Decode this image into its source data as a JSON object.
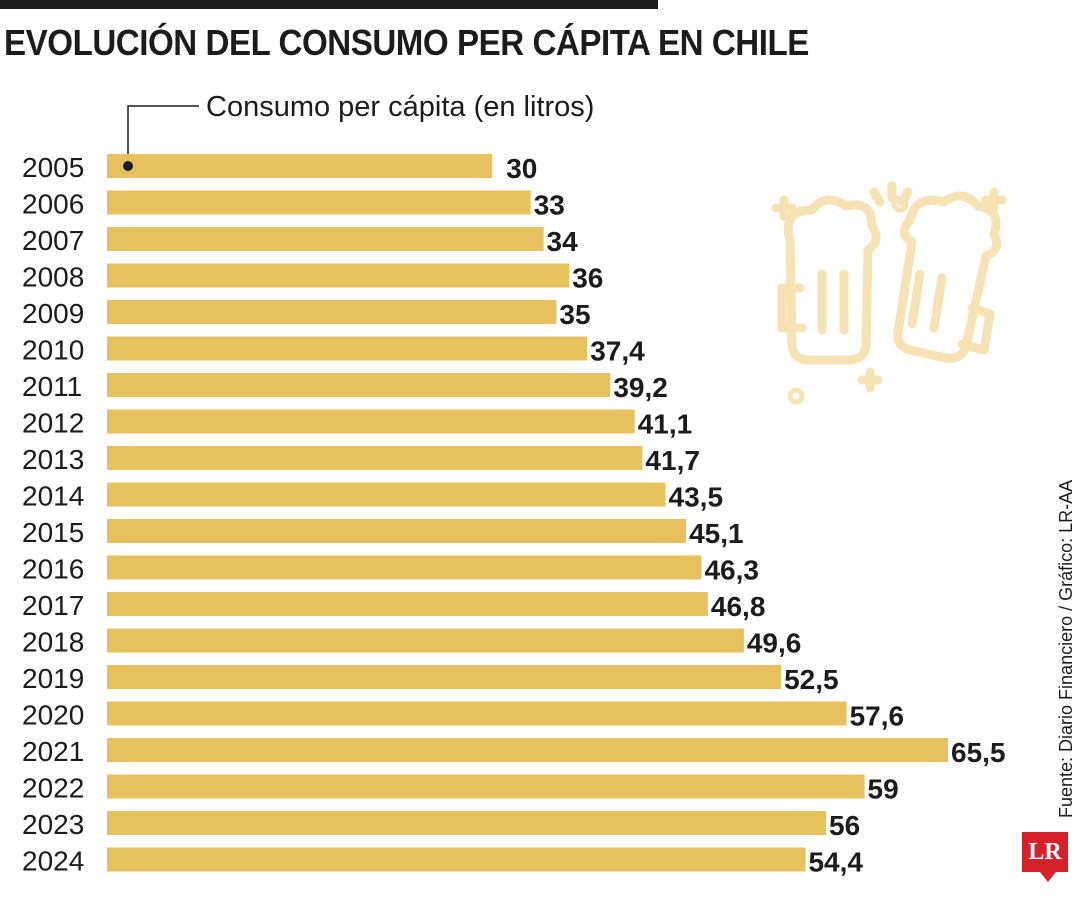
{
  "title": "EVOLUCIÓN DEL CONSUMO PER CÁPITA EN CHILE",
  "source": "Fuente: Diario Financiero / Gráfico: LR-AA",
  "logo_text": "LR",
  "colors": {
    "bar": "#e8c15f",
    "text": "#1c1c1c",
    "watermark": "#f6e3b3",
    "logo": "#d6212b"
  },
  "watermark_icon": "beer-mugs-cheers-icon",
  "chart_data": {
    "type": "bar",
    "orientation": "horizontal",
    "legend": "Consumo per cápita (en litros)",
    "categories": [
      "2005",
      "2006",
      "2007",
      "2008",
      "2009",
      "2010",
      "2011",
      "2012",
      "2013",
      "2014",
      "2015",
      "2016",
      "2017",
      "2018",
      "2019",
      "2020",
      "2021",
      "2022",
      "2023",
      "2024"
    ],
    "values": [
      30,
      33,
      34,
      36,
      35,
      37.4,
      39.2,
      41.1,
      41.7,
      43.5,
      45.1,
      46.3,
      46.8,
      49.6,
      52.5,
      57.6,
      65.5,
      59,
      56,
      54.4
    ],
    "value_labels": [
      "30",
      "33",
      "34",
      "36",
      "35",
      "37,4",
      "39,2",
      "41,1",
      "41,7",
      "43,5",
      "45,1",
      "46,3",
      "46,8",
      "49,6",
      "52,5",
      "57,6",
      "65,5",
      "59",
      "56",
      "54,4"
    ]
  }
}
